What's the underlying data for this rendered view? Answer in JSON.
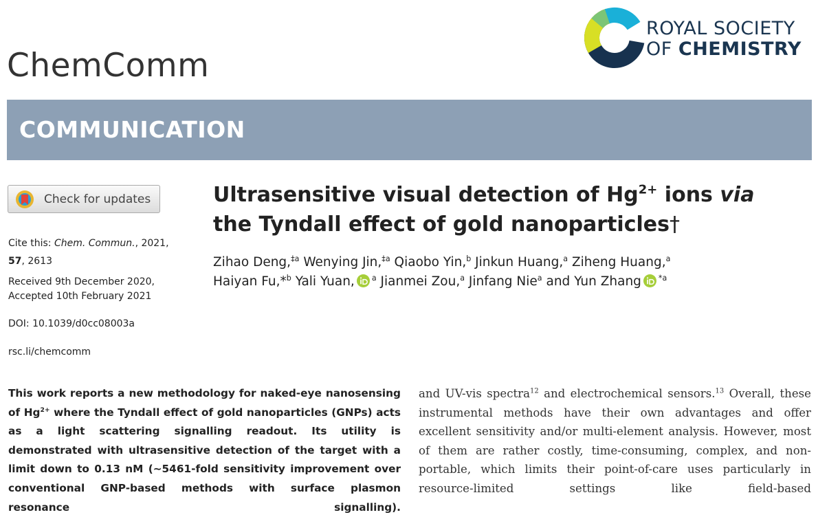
{
  "header": {
    "journal": "ChemComm",
    "publisher_line1": "ROYAL SOCIETY",
    "publisher_line2_a": "OF",
    "publisher_line2_b": "CHEMISTRY"
  },
  "banner": "COMMUNICATION",
  "sidebar": {
    "check_updates": "Check for updates",
    "cite_label": "Cite this:",
    "cite_journal": "Chem. Commun.",
    "cite_year": ", 2021,",
    "volume": "57",
    "pages": ", 2613",
    "received": "Received 9th December 2020,",
    "accepted": "Accepted 10th February 2021",
    "doi": "DOI: 10.1039/d0cc08003a",
    "url": "rsc.li/chemcomm"
  },
  "title": {
    "part1": "Ultrasensitive visual detection of Hg",
    "charge": "2+",
    "part2": " ions ",
    "italic": "via",
    "part3": "the Tyndall effect of gold nanoparticles",
    "dagger": "†"
  },
  "authors": {
    "list": [
      {
        "name": "Zihao Deng,",
        "affil": "‡a"
      },
      {
        "name": "Wenying Jin,",
        "affil": "‡a"
      },
      {
        "name": "Qiaobo Yin,",
        "affil": "b"
      },
      {
        "name": "Jinkun Huang,",
        "affil": "a"
      },
      {
        "name": "Ziheng Huang,",
        "affil": "a"
      },
      {
        "name": "Haiyan Fu,*",
        "affil": "b"
      },
      {
        "name": "Yali Yuan,",
        "affil": "a"
      },
      {
        "name": "Jianmei Zou,",
        "affil": "a"
      },
      {
        "name": "Jinfang Nie",
        "affil": "a"
      },
      {
        "name": "Yun Zhang",
        "affil": "*a"
      }
    ],
    "conjunction": "and"
  },
  "abstract": {
    "part1": "This work reports a new methodology for naked-eye nanosensing of Hg",
    "charge": "2+",
    "part2": " where the Tyndall effect of gold nanoparticles (GNPs) acts as a light scattering signalling readout. Its utility is demonstrated with ultrasensitive detection of the target with a limit down to 0.13 nM (∼5461-fold sensitivity improvement over conventional GNP-based methods with surface plasmon resonance signalling)."
  },
  "body": {
    "part1": "and UV-vis spectra",
    "ref1": "12",
    "part2": " and electrochemical sensors.",
    "ref2": "13",
    "part3": " Overall, these instrumental methods have their own advantages and offer excellent sensitivity and/or multi-element analysis. However, most of them are rather costly, time-consuming, complex, and non-portable, which limits their point-of-care uses particularly in resource-limited settings like field-based"
  }
}
